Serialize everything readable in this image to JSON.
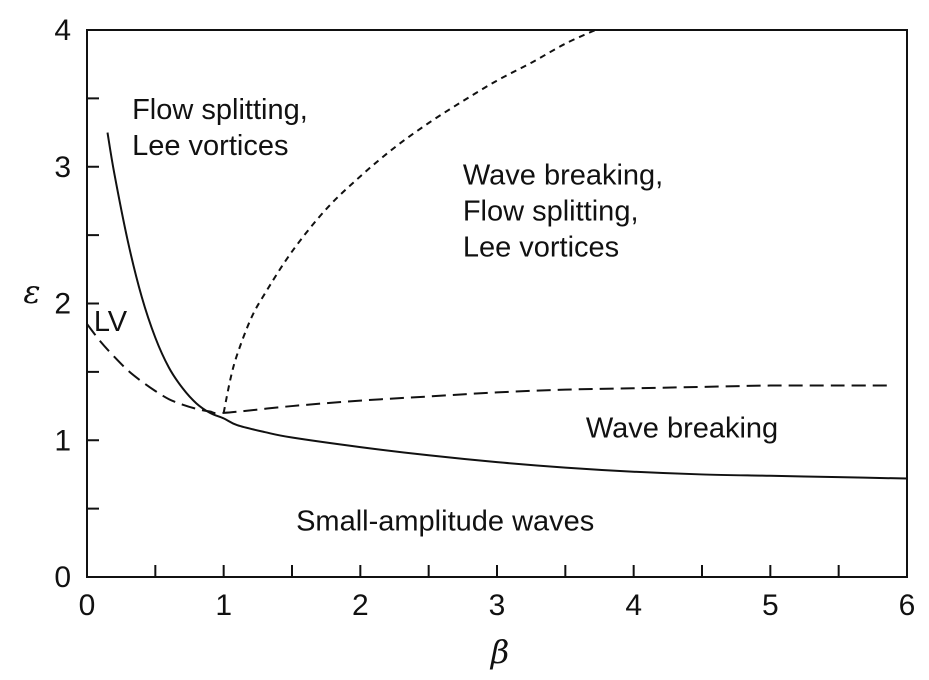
{
  "chart_data": {
    "type": "line",
    "xlabel": "β",
    "ylabel": "ε",
    "xlim": [
      0,
      6
    ],
    "ylim": [
      0,
      4
    ],
    "x_ticks": [
      0,
      1,
      2,
      3,
      4,
      5,
      6
    ],
    "y_ticks": [
      0,
      1,
      2,
      3,
      4
    ],
    "x_minor_ticks": [
      0.5,
      1.5,
      2.5,
      3.5,
      4.5,
      5.5
    ],
    "y_minor_ticks": [
      0.5,
      1.5,
      2.5,
      3.5
    ],
    "grid": false,
    "legend": "none",
    "series": [
      {
        "style": "solid",
        "color": "#111111",
        "points": [
          [
            0.15,
            3.25
          ],
          [
            0.2,
            2.95
          ],
          [
            0.3,
            2.45
          ],
          [
            0.4,
            2.05
          ],
          [
            0.5,
            1.75
          ],
          [
            0.6,
            1.53
          ],
          [
            0.7,
            1.38
          ],
          [
            0.8,
            1.27
          ],
          [
            0.9,
            1.2
          ],
          [
            1.0,
            1.16
          ],
          [
            1.1,
            1.11
          ],
          [
            1.3,
            1.06
          ],
          [
            1.5,
            1.02
          ],
          [
            2.0,
            0.95
          ],
          [
            2.5,
            0.89
          ],
          [
            3.0,
            0.84
          ],
          [
            3.5,
            0.8
          ],
          [
            4.0,
            0.77
          ],
          [
            4.5,
            0.75
          ],
          [
            5.0,
            0.74
          ],
          [
            5.5,
            0.73
          ],
          [
            6.0,
            0.72
          ]
        ]
      },
      {
        "style": "long-dash",
        "color": "#111111",
        "points": [
          [
            0.0,
            1.85
          ],
          [
            0.1,
            1.72
          ],
          [
            0.2,
            1.61
          ],
          [
            0.3,
            1.51
          ],
          [
            0.4,
            1.43
          ],
          [
            0.5,
            1.36
          ],
          [
            0.6,
            1.3
          ],
          [
            0.7,
            1.26
          ],
          [
            0.8,
            1.23
          ],
          [
            0.9,
            1.21
          ],
          [
            1.0,
            1.2
          ],
          [
            1.5,
            1.25
          ],
          [
            2.0,
            1.29
          ],
          [
            2.5,
            1.32
          ],
          [
            3.0,
            1.35
          ],
          [
            3.5,
            1.37
          ],
          [
            4.0,
            1.38
          ],
          [
            4.5,
            1.39
          ],
          [
            5.0,
            1.4
          ],
          [
            5.5,
            1.4
          ],
          [
            5.9,
            1.4
          ]
        ]
      },
      {
        "style": "short-dash",
        "color": "#111111",
        "points": [
          [
            1.0,
            1.2
          ],
          [
            1.05,
            1.45
          ],
          [
            1.1,
            1.63
          ],
          [
            1.2,
            1.89
          ],
          [
            1.3,
            2.07
          ],
          [
            1.5,
            2.38
          ],
          [
            1.75,
            2.69
          ],
          [
            2.0,
            2.93
          ],
          [
            2.25,
            3.14
          ],
          [
            2.5,
            3.32
          ],
          [
            2.75,
            3.48
          ],
          [
            3.0,
            3.63
          ],
          [
            3.25,
            3.76
          ],
          [
            3.5,
            3.9
          ],
          [
            3.72,
            4.0
          ]
        ]
      }
    ],
    "annotations": [
      {
        "lines": [
          "Flow splitting,",
          "Lee vortices"
        ],
        "x": 0.33,
        "y": 3.35
      },
      {
        "lines": [
          "Wave breaking,",
          "Flow splitting,",
          "Lee vortices"
        ],
        "x": 2.75,
        "y": 2.87
      },
      {
        "lines": [
          "LV"
        ],
        "x": 0.05,
        "y": 1.8
      },
      {
        "lines": [
          "Wave breaking"
        ],
        "x": 3.65,
        "y": 1.02
      },
      {
        "lines": [
          "Small-amplitude waves"
        ],
        "x": 1.53,
        "y": 0.34
      }
    ]
  }
}
